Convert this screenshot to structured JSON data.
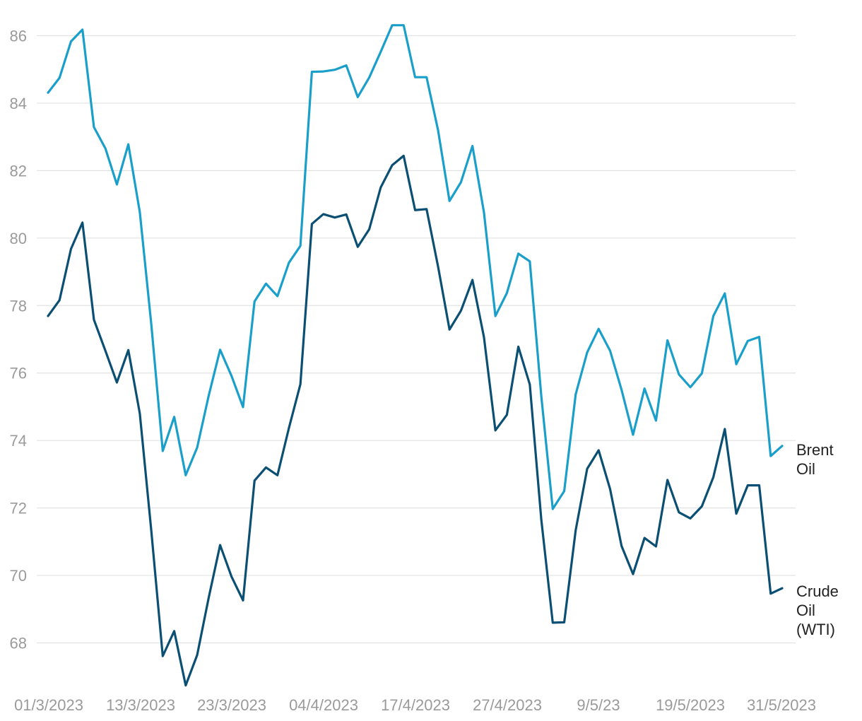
{
  "chart_data": {
    "type": "line",
    "title": "",
    "xlabel": "",
    "ylabel": "",
    "ylim": [
      66.8,
      86.8
    ],
    "yticks": [
      68,
      70,
      72,
      74,
      76,
      78,
      80,
      82,
      84,
      86
    ],
    "grid": "horizontal",
    "legend": "inline-right-end",
    "x_tick_labels": [
      "01/3/2023",
      "13/3/2023",
      "23/3/2023",
      "04/4/2023",
      "17/4/2023",
      "27/4/2023",
      "9/5/23",
      "19/5/2023",
      "31/5/2023"
    ],
    "series": [
      {
        "name": "Brent Oil",
        "color": "#1a9fcb",
        "values": [
          84.31,
          84.75,
          85.83,
          86.18,
          83.29,
          82.66,
          81.59,
          82.78,
          80.77,
          77.45,
          73.69,
          74.7,
          72.97,
          73.79,
          75.32,
          76.69,
          75.91,
          74.99,
          78.12,
          78.65,
          78.28,
          79.27,
          79.77,
          84.93,
          84.94,
          84.99,
          85.12,
          84.18,
          84.76,
          85.52,
          86.31,
          86.31,
          84.77,
          84.77,
          83.2,
          81.1,
          81.66,
          82.73,
          80.77,
          77.69,
          78.37,
          79.54,
          79.31,
          75.32,
          71.97,
          72.5,
          75.37,
          76.61,
          77.31,
          76.66,
          75.5,
          74.17,
          75.54,
          74.59,
          76.97,
          75.96,
          75.58,
          75.99,
          77.69,
          78.36,
          76.26,
          76.95,
          77.07,
          73.54,
          73.84
        ]
      },
      {
        "name": "Crude Oil (WTI)",
        "color": "#0b4f73",
        "values": [
          77.69,
          78.16,
          79.68,
          80.46,
          77.58,
          76.66,
          75.72,
          76.68,
          74.8,
          71.33,
          67.61,
          68.35,
          66.74,
          67.64,
          69.33,
          70.9,
          69.96,
          69.26,
          72.81,
          73.2,
          72.97,
          74.37,
          75.67,
          80.42,
          80.71,
          80.61,
          80.7,
          79.74,
          80.26,
          81.5,
          82.16,
          82.44,
          80.83,
          80.86,
          79.16,
          77.29,
          77.85,
          78.76,
          77.07,
          74.3,
          74.76,
          76.78,
          75.66,
          71.66,
          68.6,
          68.61,
          71.34,
          73.16,
          73.71,
          72.56,
          70.87,
          70.04,
          71.11,
          70.86,
          72.83,
          71.87,
          71.69,
          72.05,
          72.91,
          74.34,
          71.83,
          72.67,
          72.67,
          69.46,
          69.62
        ]
      }
    ],
    "legend_lines": {
      "brent": [
        "Brent",
        "Oil"
      ],
      "wti": [
        "Crude",
        "Oil",
        "(WTI)"
      ]
    }
  }
}
